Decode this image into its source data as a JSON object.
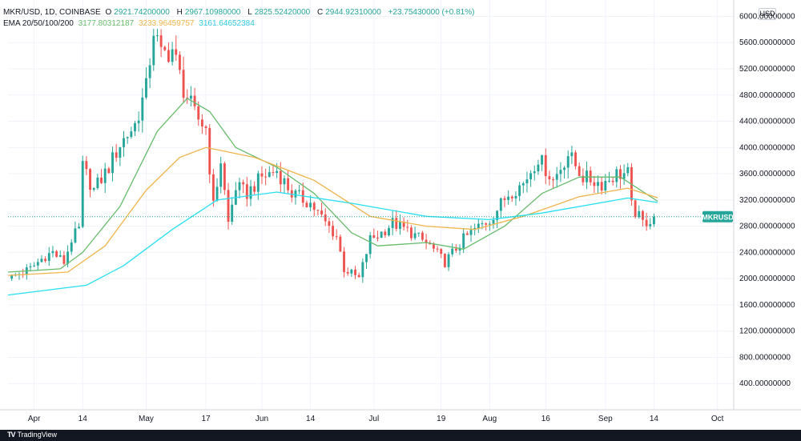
{
  "header": {
    "symbol": "MKR/USD, 1D, COINBASE",
    "open_label": "O",
    "open": "2921.74200000",
    "high_label": "H",
    "high": "2967.10980000",
    "low_label": "L",
    "low": "2825.52420000",
    "close_label": "C",
    "close": "2944.92310000",
    "change": "+23.75430000 (+0.81%)",
    "ema_label": "EMA 20/50/100/200",
    "ema20": "3177.80312187",
    "ema50": "3233.96459757",
    "ema100": "3161.64652384"
  },
  "currency_button": "USD",
  "footer": {
    "brand": "TradingView"
  },
  "colors": {
    "up": "#26a69a",
    "down": "#ef5350",
    "ema20": "#66bb6a",
    "ema50": "#f0b44c",
    "ema100": "#26dff0",
    "last_price_tag": "#26a69a"
  },
  "chart_data": {
    "type": "candlestick",
    "symbol_tag": "MKRUSD",
    "last_price": 2944.9231,
    "ylim": [
      0,
      6250
    ],
    "y_ticks": [
      {
        "value": 400,
        "label": "400.00000000"
      },
      {
        "value": 800,
        "label": "800.00000000"
      },
      {
        "value": 1200,
        "label": "1200.00000000"
      },
      {
        "value": 1600,
        "label": "1600.00000000"
      },
      {
        "value": 2000,
        "label": "2000.00000000"
      },
      {
        "value": 2400,
        "label": "2400.00000000"
      },
      {
        "value": 2800,
        "label": "2800.00000000"
      },
      {
        "value": 3200,
        "label": "3200.00000000"
      },
      {
        "value": 3600,
        "label": "3600.00000000"
      },
      {
        "value": 4000,
        "label": "4000.00000000"
      },
      {
        "value": 4400,
        "label": "4400.00000000"
      },
      {
        "value": 4800,
        "label": "4800.00000000"
      },
      {
        "value": 5200,
        "label": "5200.00000000"
      },
      {
        "value": 5600,
        "label": "5600.00000000"
      },
      {
        "value": 6000,
        "label": "6000.00000000"
      }
    ],
    "x_ticks": [
      {
        "date": "2021-04-01",
        "label": "Apr"
      },
      {
        "date": "2021-04-14",
        "label": "14"
      },
      {
        "date": "2021-05-01",
        "label": "May"
      },
      {
        "date": "2021-05-17",
        "label": "17"
      },
      {
        "date": "2021-06-01",
        "label": "Jun"
      },
      {
        "date": "2021-06-14",
        "label": "14"
      },
      {
        "date": "2021-07-01",
        "label": "Jul"
      },
      {
        "date": "2021-07-19",
        "label": "19"
      },
      {
        "date": "2021-08-01",
        "label": "Aug"
      },
      {
        "date": "2021-08-16",
        "label": "16"
      },
      {
        "date": "2021-09-01",
        "label": "Sep"
      },
      {
        "date": "2021-09-14",
        "label": "14"
      },
      {
        "date": "2021-10-01",
        "label": "Oct"
      }
    ],
    "xlim": [
      "2021-03-25",
      "2021-10-03"
    ],
    "price_keypoints": [
      {
        "date": "2021-03-25",
        "price": 2000
      },
      {
        "date": "2021-03-31",
        "price": 2150
      },
      {
        "date": "2021-04-04",
        "price": 2350
      },
      {
        "date": "2021-04-06",
        "price": 2400
      },
      {
        "date": "2021-04-09",
        "price": 2250
      },
      {
        "date": "2021-04-11",
        "price": 2600
      },
      {
        "date": "2021-04-13",
        "price": 2750
      },
      {
        "date": "2021-04-14",
        "price": 3700
      },
      {
        "date": "2021-04-17",
        "price": 3350
      },
      {
        "date": "2021-04-21",
        "price": 3700
      },
      {
        "date": "2021-04-24",
        "price": 4050
      },
      {
        "date": "2021-04-28",
        "price": 4350
      },
      {
        "date": "2021-05-01",
        "price": 4900
      },
      {
        "date": "2021-05-03",
        "price": 5800
      },
      {
        "date": "2021-05-05",
        "price": 5400
      },
      {
        "date": "2021-05-08",
        "price": 5500
      },
      {
        "date": "2021-05-11",
        "price": 4900
      },
      {
        "date": "2021-05-14",
        "price": 4500
      },
      {
        "date": "2021-05-17",
        "price": 4300
      },
      {
        "date": "2021-05-19",
        "price": 3100
      },
      {
        "date": "2021-05-21",
        "price": 3800
      },
      {
        "date": "2021-05-23",
        "price": 2850
      },
      {
        "date": "2021-05-25",
        "price": 3400
      },
      {
        "date": "2021-05-28",
        "price": 3300
      },
      {
        "date": "2021-06-01",
        "price": 3550
      },
      {
        "date": "2021-06-05",
        "price": 3650
      },
      {
        "date": "2021-06-09",
        "price": 3300
      },
      {
        "date": "2021-06-14",
        "price": 3150
      },
      {
        "date": "2021-06-18",
        "price": 2850
      },
      {
        "date": "2021-06-21",
        "price": 2650
      },
      {
        "date": "2021-06-23",
        "price": 2150
      },
      {
        "date": "2021-06-27",
        "price": 2000
      },
      {
        "date": "2021-06-30",
        "price": 2600
      },
      {
        "date": "2021-07-03",
        "price": 2700
      },
      {
        "date": "2021-07-06",
        "price": 2850
      },
      {
        "date": "2021-07-11",
        "price": 2700
      },
      {
        "date": "2021-07-16",
        "price": 2500
      },
      {
        "date": "2021-07-20",
        "price": 2250
      },
      {
        "date": "2021-07-25",
        "price": 2600
      },
      {
        "date": "2021-07-28",
        "price": 2750
      },
      {
        "date": "2021-08-01",
        "price": 2900
      },
      {
        "date": "2021-08-06",
        "price": 3300
      },
      {
        "date": "2021-08-10",
        "price": 3450
      },
      {
        "date": "2021-08-14",
        "price": 3850
      },
      {
        "date": "2021-08-18",
        "price": 3500
      },
      {
        "date": "2021-08-22",
        "price": 3900
      },
      {
        "date": "2021-08-26",
        "price": 3550
      },
      {
        "date": "2021-08-31",
        "price": 3450
      },
      {
        "date": "2021-09-04",
        "price": 3600
      },
      {
        "date": "2021-09-07",
        "price": 3600
      },
      {
        "date": "2021-09-08",
        "price": 3100
      },
      {
        "date": "2021-09-11",
        "price": 2850
      },
      {
        "date": "2021-09-14",
        "price": 2920
      }
    ],
    "series": [
      {
        "name": "EMA 20",
        "color": "#66bb6a",
        "keypoints": [
          {
            "date": "2021-03-25",
            "price": 2100
          },
          {
            "date": "2021-04-08",
            "price": 2150
          },
          {
            "date": "2021-04-14",
            "price": 2400
          },
          {
            "date": "2021-04-24",
            "price": 3100
          },
          {
            "date": "2021-05-04",
            "price": 4250
          },
          {
            "date": "2021-05-12",
            "price": 4750
          },
          {
            "date": "2021-05-18",
            "price": 4550
          },
          {
            "date": "2021-05-25",
            "price": 4000
          },
          {
            "date": "2021-06-05",
            "price": 3700
          },
          {
            "date": "2021-06-15",
            "price": 3300
          },
          {
            "date": "2021-06-25",
            "price": 2700
          },
          {
            "date": "2021-07-02",
            "price": 2500
          },
          {
            "date": "2021-07-15",
            "price": 2550
          },
          {
            "date": "2021-07-25",
            "price": 2450
          },
          {
            "date": "2021-08-05",
            "price": 2800
          },
          {
            "date": "2021-08-15",
            "price": 3300
          },
          {
            "date": "2021-08-25",
            "price": 3550
          },
          {
            "date": "2021-09-05",
            "price": 3550
          },
          {
            "date": "2021-09-15",
            "price": 3180
          }
        ]
      },
      {
        "name": "EMA 50",
        "color": "#f0b44c",
        "keypoints": [
          {
            "date": "2021-03-25",
            "price": 2050
          },
          {
            "date": "2021-04-10",
            "price": 2100
          },
          {
            "date": "2021-04-20",
            "price": 2500
          },
          {
            "date": "2021-05-01",
            "price": 3350
          },
          {
            "date": "2021-05-10",
            "price": 3850
          },
          {
            "date": "2021-05-17",
            "price": 4000
          },
          {
            "date": "2021-05-30",
            "price": 3850
          },
          {
            "date": "2021-06-15",
            "price": 3500
          },
          {
            "date": "2021-06-30",
            "price": 2950
          },
          {
            "date": "2021-07-15",
            "price": 2800
          },
          {
            "date": "2021-07-28",
            "price": 2750
          },
          {
            "date": "2021-08-10",
            "price": 2950
          },
          {
            "date": "2021-08-25",
            "price": 3250
          },
          {
            "date": "2021-09-07",
            "price": 3380
          },
          {
            "date": "2021-09-15",
            "price": 3234
          }
        ]
      },
      {
        "name": "EMA 100",
        "color": "#26dff0",
        "keypoints": [
          {
            "date": "2021-03-25",
            "price": 1750
          },
          {
            "date": "2021-04-15",
            "price": 1900
          },
          {
            "date": "2021-04-25",
            "price": 2200
          },
          {
            "date": "2021-05-08",
            "price": 2750
          },
          {
            "date": "2021-05-20",
            "price": 3200
          },
          {
            "date": "2021-06-05",
            "price": 3320
          },
          {
            "date": "2021-06-25",
            "price": 3150
          },
          {
            "date": "2021-07-15",
            "price": 2950
          },
          {
            "date": "2021-08-01",
            "price": 2900
          },
          {
            "date": "2021-08-15",
            "price": 3000
          },
          {
            "date": "2021-09-07",
            "price": 3230
          },
          {
            "date": "2021-09-15",
            "price": 3162
          }
        ]
      }
    ]
  }
}
